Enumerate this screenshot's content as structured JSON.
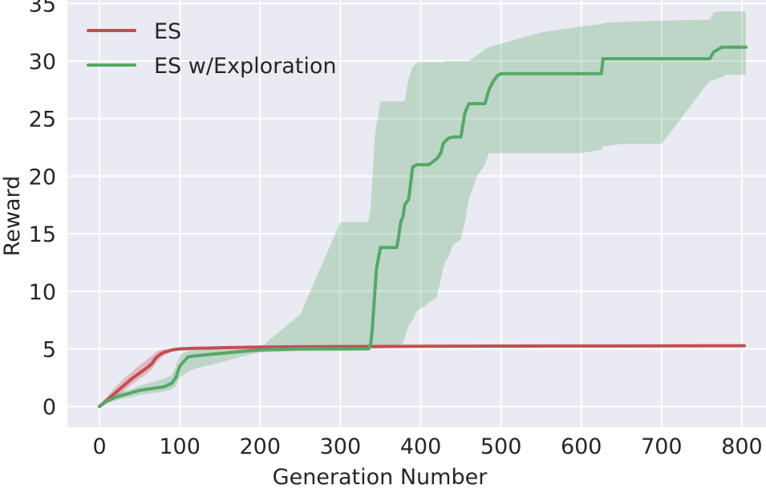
{
  "chart_data": {
    "type": "line",
    "title": "",
    "xlabel": "Generation Number",
    "ylabel": "Reward",
    "xlim": [
      -40,
      830
    ],
    "ylim": [
      -1.8,
      35.3
    ],
    "xticks": [
      0,
      100,
      200,
      300,
      400,
      500,
      600,
      700,
      800
    ],
    "yticks": [
      0,
      5,
      10,
      15,
      20,
      25,
      30,
      35
    ],
    "grid": true,
    "legend_position": "top-left",
    "background_color": "#eaeaf2",
    "grid_color": "#ffffff",
    "series": [
      {
        "name": "ES",
        "color": "#c44e52",
        "x": [
          0,
          5,
          10,
          20,
          30,
          40,
          50,
          60,
          65,
          70,
          75,
          80,
          85,
          90,
          100,
          120,
          150,
          200,
          250,
          300,
          400,
          500,
          600,
          700,
          803
        ],
        "y": [
          0,
          0.3,
          0.6,
          1.2,
          1.8,
          2.4,
          2.9,
          3.4,
          3.7,
          4.2,
          4.5,
          4.7,
          4.8,
          4.9,
          5.0,
          5.05,
          5.1,
          5.15,
          5.18,
          5.2,
          5.22,
          5.24,
          5.25,
          5.26,
          5.27
        ],
        "band_lower": [
          0,
          0.1,
          0.3,
          0.8,
          1.3,
          1.9,
          2.4,
          2.9,
          3.2,
          3.7,
          4.1,
          4.4,
          4.6,
          4.8,
          4.95,
          5.0,
          5.05,
          5.1,
          5.15,
          5.18,
          5.2,
          5.22,
          5.23,
          5.24,
          5.25
        ],
        "band_upper": [
          0,
          0.5,
          0.9,
          1.7,
          2.4,
          3.0,
          3.6,
          4.1,
          4.4,
          4.7,
          4.9,
          5.0,
          5.0,
          5.0,
          5.05,
          5.1,
          5.15,
          5.2,
          5.22,
          5.24,
          5.26,
          5.27,
          5.28,
          5.29,
          5.3
        ]
      },
      {
        "name": "ES w/Exploration",
        "color": "#55a868",
        "x": [
          0,
          10,
          20,
          30,
          40,
          50,
          60,
          70,
          80,
          90,
          95,
          100,
          110,
          120,
          150,
          180,
          200,
          250,
          300,
          335,
          338,
          340,
          343,
          345,
          350,
          370,
          372,
          375,
          378,
          380,
          385,
          390,
          395,
          400,
          410,
          420,
          425,
          428,
          430,
          435,
          440,
          450,
          455,
          460,
          470,
          480,
          485,
          490,
          495,
          500,
          550,
          600,
          625,
          627,
          650,
          700,
          760,
          765,
          770,
          775,
          780,
          805
        ],
        "y": [
          0,
          0.5,
          0.8,
          1.0,
          1.2,
          1.4,
          1.5,
          1.6,
          1.7,
          2.0,
          2.5,
          3.5,
          4.3,
          4.4,
          4.6,
          4.8,
          4.9,
          5.0,
          5.0,
          5.0,
          5.5,
          7.0,
          10.0,
          12.0,
          13.8,
          13.8,
          14.5,
          16.0,
          16.5,
          17.5,
          18.0,
          20.8,
          21.0,
          21.0,
          21.0,
          21.5,
          22.0,
          22.8,
          23.0,
          23.3,
          23.4,
          23.4,
          25.5,
          26.3,
          26.3,
          26.3,
          27.5,
          28.2,
          28.7,
          28.9,
          28.9,
          28.9,
          28.9,
          30.2,
          30.2,
          30.2,
          30.2,
          30.8,
          31.0,
          31.2,
          31.2,
          31.2
        ],
        "band_lower": [
          0,
          0.3,
          0.5,
          0.7,
          0.8,
          1.0,
          1.1,
          1.2,
          1.3,
          1.5,
          1.8,
          2.5,
          3.0,
          3.3,
          3.8,
          4.4,
          4.7,
          4.8,
          4.8,
          4.9,
          4.9,
          5.0,
          5.0,
          5.0,
          5.0,
          5.1,
          5.1,
          5.2,
          5.5,
          6.0,
          7.0,
          7.5,
          8.3,
          8.5,
          9.0,
          9.5,
          11.0,
          12.0,
          12.5,
          13.0,
          14.0,
          14.5,
          16.0,
          18.0,
          20.0,
          21.0,
          22.0,
          22.0,
          22.0,
          22.0,
          22.0,
          22.0,
          22.3,
          22.6,
          22.8,
          22.8,
          28.3,
          28.3,
          28.5,
          28.6,
          28.8,
          28.8
        ],
        "band_upper": [
          0,
          0.7,
          1.1,
          1.3,
          1.5,
          1.8,
          2.0,
          2.2,
          2.4,
          2.7,
          3.5,
          4.5,
          4.8,
          4.9,
          5.0,
          5.1,
          5.1,
          8.0,
          16.0,
          16.0,
          17.5,
          20.0,
          23.5,
          24.5,
          26.5,
          26.5,
          26.5,
          26.5,
          26.5,
          26.5,
          28.5,
          29.5,
          29.8,
          29.9,
          29.9,
          29.9,
          29.9,
          29.9,
          30.0,
          30.0,
          30.0,
          30.0,
          30.0,
          30.0,
          30.5,
          31.0,
          31.2,
          31.3,
          31.4,
          31.5,
          32.5,
          33.0,
          33.2,
          33.3,
          33.4,
          33.5,
          33.6,
          34.2,
          34.3,
          34.3,
          34.3,
          34.3
        ]
      }
    ]
  }
}
